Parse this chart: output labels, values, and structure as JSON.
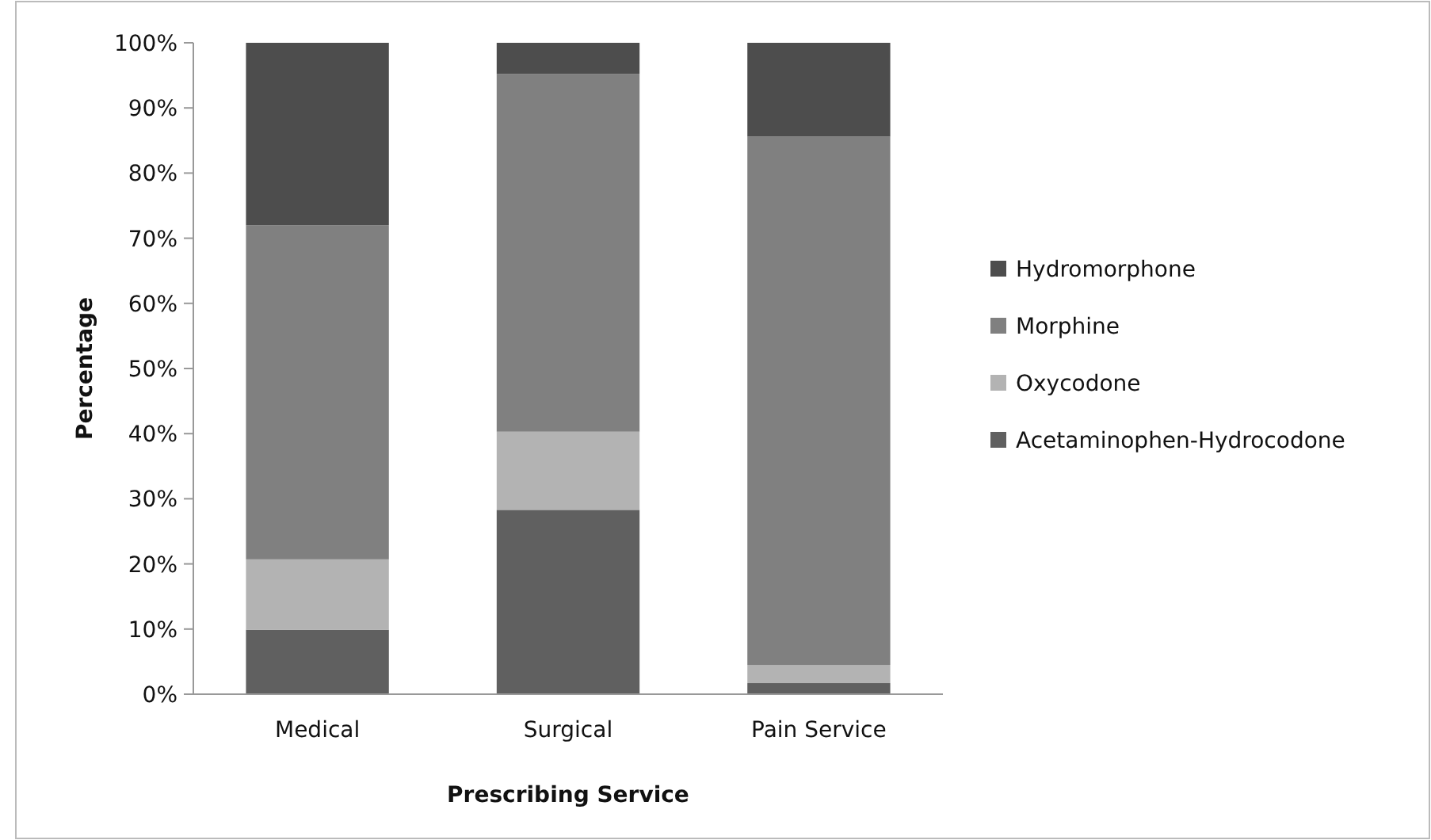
{
  "chart_data": {
    "type": "bar",
    "stacked": true,
    "xlabel": "Prescribing Service",
    "ylabel": "Percentage",
    "categories": [
      "Medical",
      "Surgical",
      "Pain Service"
    ],
    "series": [
      {
        "name": "Acetaminophen-Hydrocodone",
        "color": "#606060",
        "values": [
          9.9,
          28.3,
          1.7
        ]
      },
      {
        "name": "Oxycodone",
        "color": "#b3b3b3",
        "values": [
          10.8,
          12,
          2.8
        ]
      },
      {
        "name": "Morphine",
        "color": "#808080",
        "values": [
          51.3,
          54.9,
          81.1
        ]
      },
      {
        "name": "Hydromorphone",
        "color": "#4d4d4d",
        "values": [
          28,
          4.8,
          14.4
        ]
      }
    ],
    "ylim": [
      0,
      100
    ],
    "yticks": [
      {
        "value": 0,
        "label": "0%"
      },
      {
        "value": 10,
        "label": "10%"
      },
      {
        "value": 20,
        "label": "20%"
      },
      {
        "value": 30,
        "label": "30%"
      },
      {
        "value": 40,
        "label": "40%"
      },
      {
        "value": 50,
        "label": "50%"
      },
      {
        "value": 60,
        "label": "60%"
      },
      {
        "value": 70,
        "label": "70%"
      },
      {
        "value": 80,
        "label": "80%"
      },
      {
        "value": 90,
        "label": "90%"
      },
      {
        "value": 100,
        "label": "100%"
      }
    ],
    "legend": "right",
    "grid": false
  }
}
